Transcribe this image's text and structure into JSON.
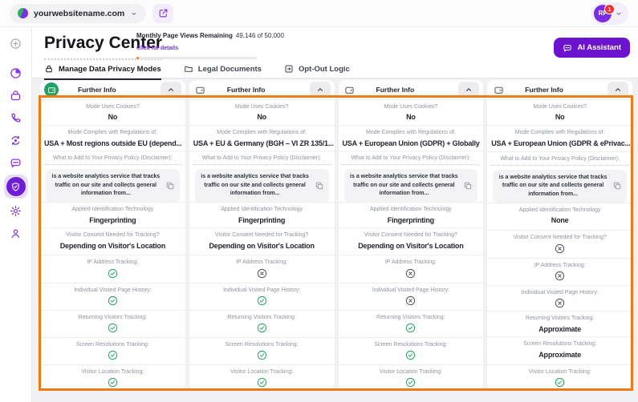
{
  "colors": {
    "accent": "#7d2ae8",
    "button": "#6c14cd",
    "highlight": "#ee7b17",
    "success": "#1fa463",
    "danger": "#ef2f2f"
  },
  "topbar": {
    "site": "yourwebsitename.com",
    "avatar_initials": "RF",
    "notification_count": "1"
  },
  "header": {
    "title": "Privacy Center",
    "usage_label": "Monthly Page Views Remaining",
    "usage_value": "49,146 of 50,000",
    "usage_link": "Click for details",
    "progress_percent": 2,
    "ai_button": "AI Assistant"
  },
  "tabs": [
    {
      "label": "Manage Data Privacy Modes",
      "icon": "lock-icon",
      "active": true
    },
    {
      "label": "Legal Documents",
      "icon": "folder-icon",
      "active": false
    },
    {
      "label": "Opt-Out Logic",
      "icon": "opt-out-icon",
      "active": false
    }
  ],
  "sidebar": {
    "items": [
      {
        "id": "add",
        "icon": "plus-circle-icon",
        "muted": true
      },
      {
        "id": "dashboard",
        "icon": "pie-icon"
      },
      {
        "id": "visitors",
        "icon": "bag-icon"
      },
      {
        "id": "support",
        "icon": "phone-icon"
      },
      {
        "id": "automation",
        "icon": "orbit-icon"
      },
      {
        "id": "feedback",
        "icon": "chat-icon"
      },
      {
        "id": "privacy",
        "icon": "shield-check-icon",
        "active": true
      },
      {
        "id": "settings",
        "icon": "gear-icon"
      },
      {
        "id": "account",
        "icon": "user-pin-icon"
      }
    ]
  },
  "columns": [
    {
      "header": "Further Info",
      "header_icon": "wallet-icon",
      "accent": "green",
      "rows": [
        {
          "type": "text",
          "label": "Mode Uses Cookies?",
          "value": "No"
        },
        {
          "type": "text",
          "label": "Mode Complies with Regulations of:",
          "value": "USA + Most regions outside EU (depend..."
        },
        {
          "type": "policy",
          "label": "What to Add to Your Privacy Policy (Disclaimer):",
          "value": "is a website analytics service that tracks traffic on our site and collects general information from..."
        },
        {
          "type": "text",
          "label": "Applied Identification Technology",
          "value": "Fingerprinting"
        },
        {
          "type": "text",
          "label": "Visitor Consent Needed for Tracking?",
          "value": "Depending on Visitor's Location"
        },
        {
          "type": "status",
          "label": "IP Address Tracking:",
          "icon": "check-icon"
        },
        {
          "type": "status",
          "label": "Individual Visited Page History:",
          "icon": "check-icon"
        },
        {
          "type": "status",
          "label": "Returning Visitors Tracking:",
          "icon": "check-icon"
        },
        {
          "type": "status",
          "label": "Screen Resolutions Tracking:",
          "icon": "check-icon"
        },
        {
          "type": "status",
          "label": "Visitor Location Tracking:",
          "icon": "check-icon"
        }
      ]
    },
    {
      "header": "Further Info",
      "header_icon": "wallet-icon",
      "accent": "plain",
      "rows": [
        {
          "type": "text",
          "label": "Mode Uses Cookies?",
          "value": "No"
        },
        {
          "type": "text",
          "label": "Mode Complies with Regulations of:",
          "value": "USA + EU & Germany (BGH – VI ZR 135/1..."
        },
        {
          "type": "policy",
          "label": "What to Add to Your Privacy Policy (Disclaimer):",
          "value": "is a website analytics service that tracks traffic on our site and collects general information from..."
        },
        {
          "type": "text",
          "label": "Applied Identification Technology",
          "value": "Fingerprinting"
        },
        {
          "type": "text",
          "label": "Visitor Consent Needed for Tracking?",
          "value": "Depending on Visitor's Location"
        },
        {
          "type": "status",
          "label": "IP Address Tracking:",
          "icon": "cross-icon"
        },
        {
          "type": "status",
          "label": "Individual Visited Page History:",
          "icon": "check-icon"
        },
        {
          "type": "status",
          "label": "Returning Visitors Tracking:",
          "icon": "check-icon"
        },
        {
          "type": "status",
          "label": "Screen Resolutions Tracking:",
          "icon": "check-icon"
        },
        {
          "type": "status",
          "label": "Visitor Location Tracking:",
          "icon": "check-icon"
        }
      ]
    },
    {
      "header": "Further Info",
      "header_icon": "wallet-icon",
      "accent": "plain",
      "rows": [
        {
          "type": "text",
          "label": "Mode Uses Cookies?",
          "value": "No"
        },
        {
          "type": "text",
          "label": "Mode Complies with Regulations of:",
          "value": "USA + European Union (GDPR) + Globally"
        },
        {
          "type": "policy",
          "label": "What to Add to Your Privacy Policy (Disclaimer):",
          "value": "is a website analytics service that tracks traffic on our site and collects general information from..."
        },
        {
          "type": "text",
          "label": "Applied Identification Technology",
          "value": "Fingerprinting"
        },
        {
          "type": "text",
          "label": "Visitor Consent Needed for Tracking?",
          "value": "Depending on Visitor's Location"
        },
        {
          "type": "status",
          "label": "IP Address Tracking:",
          "icon": "cross-icon"
        },
        {
          "type": "status",
          "label": "Individual Visited Page History:",
          "icon": "cross-icon"
        },
        {
          "type": "status",
          "label": "Returning Visitors Tracking:",
          "icon": "check-icon"
        },
        {
          "type": "status",
          "label": "Screen Resolutions Tracking:",
          "icon": "check-icon"
        },
        {
          "type": "status",
          "label": "Visitor Location Tracking:",
          "icon": "check-icon"
        }
      ]
    },
    {
      "header": "Further Info",
      "header_icon": "wallet-icon",
      "accent": "plain",
      "rows": [
        {
          "type": "text",
          "label": "Mode Uses Cookies?",
          "value": "No"
        },
        {
          "type": "text",
          "label": "Mode Complies with Regulations of:",
          "value": "USA + European Union (GDPR & ePrivac..."
        },
        {
          "type": "policy",
          "label": "What to Add to Your Privacy Policy (Disclaimer):",
          "value": "is a website analytics service that tracks traffic on our site and collects general information from..."
        },
        {
          "type": "text",
          "label": "Applied Identification Technology",
          "value": "None"
        },
        {
          "type": "status",
          "label": "Visitor Consent Needed for Tracking?",
          "icon": "cross-icon"
        },
        {
          "type": "status",
          "label": "IP Address Tracking:",
          "icon": "cross-icon"
        },
        {
          "type": "status",
          "label": "Individual Visited Page History:",
          "icon": "cross-icon"
        },
        {
          "type": "text",
          "label": "Returning Visitors Tracking:",
          "value": "Approximate"
        },
        {
          "type": "text",
          "label": "Screen Resolutions Tracking:",
          "value": "Approximate"
        },
        {
          "type": "status",
          "label": "Visitor Location Tracking:",
          "icon": "check-icon"
        }
      ]
    }
  ]
}
